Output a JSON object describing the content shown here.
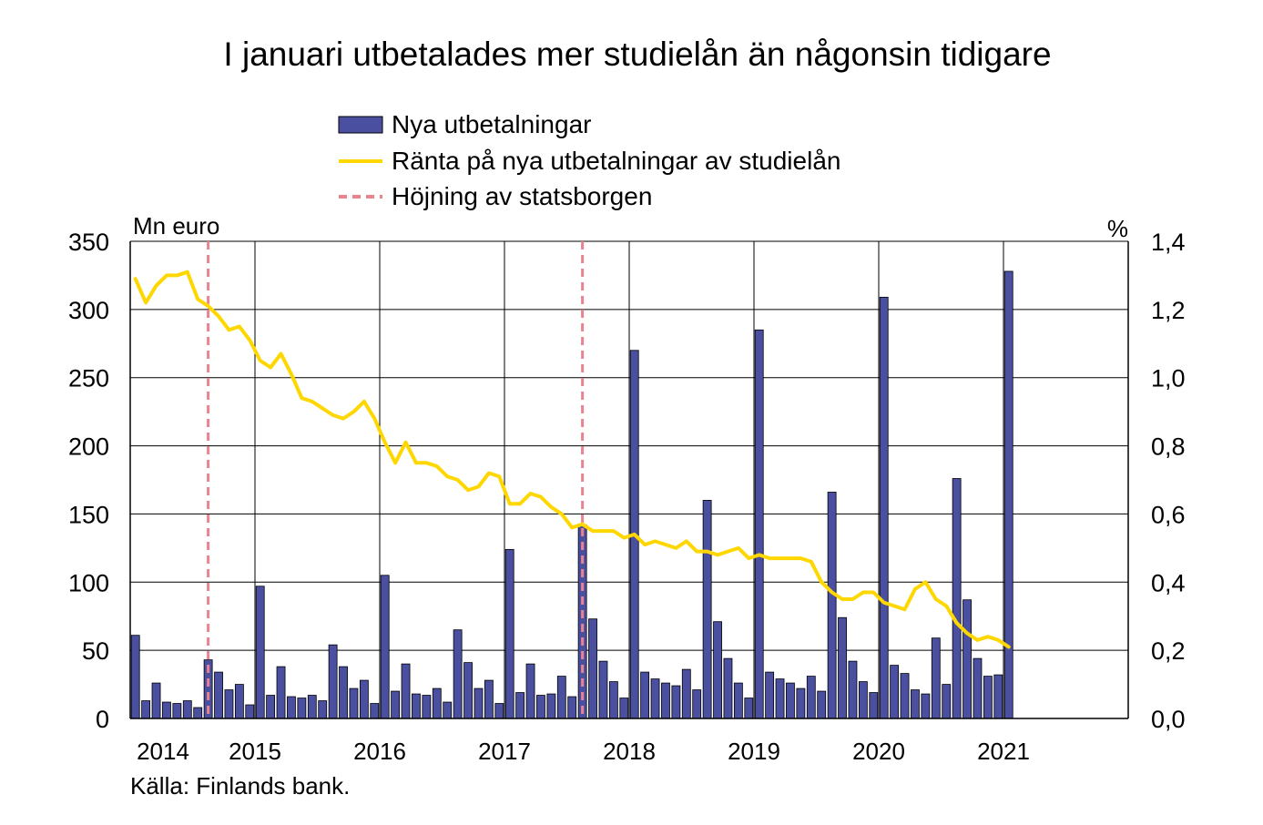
{
  "chart_data": {
    "type": "bar+line",
    "title": "I januari utbetalades mer studielån än någonsin tidigare",
    "left_axis_unit": "Mn euro",
    "right_axis_unit": "%",
    "left_ylim": [
      0,
      350
    ],
    "left_ticks": [
      "0",
      "50",
      "100",
      "150",
      "200",
      "250",
      "300",
      "350"
    ],
    "left_tick_values": [
      0,
      50,
      100,
      150,
      200,
      250,
      300,
      350
    ],
    "right_ylim": [
      0,
      1.4
    ],
    "right_ticks": [
      "0,0",
      "0,2",
      "0,4",
      "0,6",
      "0,8",
      "1,0",
      "1,2",
      "1,4"
    ],
    "right_tick_values": [
      0,
      0.2,
      0.4,
      0.6,
      0.8,
      1.0,
      1.2,
      1.4
    ],
    "x_labels": [
      "2014",
      "2015",
      "2016",
      "2017",
      "2018",
      "2019",
      "2020",
      "2021"
    ],
    "total_months": 96,
    "grid": true,
    "legend": [
      "Nya utbetalningar",
      "Ränta på nya utbetalningar av studielån",
      "Höjning av statsborgen"
    ],
    "source": "Källa: Finlands bank.",
    "colors": {
      "bars": "#4a4fa0",
      "bar_edge": "#000000",
      "line": "#ffd700",
      "marker": "#e8838f",
      "grid": "#000000"
    },
    "series": [
      {
        "name": "Nya utbetalningar",
        "axis": "left",
        "values": [
          61,
          13,
          26,
          12,
          11,
          13,
          8,
          43,
          34,
          21,
          25,
          10,
          97,
          17,
          38,
          16,
          15,
          17,
          13,
          54,
          38,
          22,
          28,
          11,
          105,
          20,
          40,
          18,
          17,
          22,
          12,
          65,
          41,
          22,
          28,
          11,
          124,
          19,
          40,
          17,
          18,
          31,
          16,
          142,
          73,
          42,
          27,
          15,
          270,
          34,
          29,
          26,
          24,
          36,
          21,
          160,
          71,
          44,
          26,
          15,
          285,
          34,
          29,
          26,
          22,
          31,
          20,
          166,
          74,
          42,
          27,
          19,
          309,
          39,
          33,
          21,
          18,
          59,
          25,
          176,
          87,
          44,
          31,
          32,
          328
        ]
      },
      {
        "name": "Ränta på nya utbetalningar av studielån",
        "axis": "right",
        "values": [
          1.29,
          1.22,
          1.27,
          1.3,
          1.3,
          1.31,
          1.23,
          1.21,
          1.18,
          1.14,
          1.15,
          1.11,
          1.05,
          1.03,
          1.07,
          1.01,
          0.94,
          0.93,
          0.91,
          0.89,
          0.88,
          0.9,
          0.93,
          0.88,
          0.81,
          0.75,
          0.81,
          0.75,
          0.75,
          0.74,
          0.71,
          0.7,
          0.67,
          0.68,
          0.72,
          0.71,
          0.63,
          0.63,
          0.66,
          0.65,
          0.62,
          0.6,
          0.56,
          0.57,
          0.55,
          0.55,
          0.55,
          0.53,
          0.54,
          0.51,
          0.52,
          0.51,
          0.5,
          0.52,
          0.49,
          0.49,
          0.48,
          0.49,
          0.5,
          0.47,
          0.48,
          0.47,
          0.47,
          0.47,
          0.47,
          0.46,
          0.4,
          0.37,
          0.35,
          0.35,
          0.37,
          0.37,
          0.34,
          0.33,
          0.32,
          0.38,
          0.4,
          0.35,
          0.33,
          0.28,
          0.25,
          0.23,
          0.24,
          0.23,
          0.21
        ]
      }
    ],
    "markers": [
      {
        "name": "Höjning av statsborgen",
        "month_index": 7.5
      },
      {
        "name": "Höjning av statsborgen",
        "month_index": 43.5
      }
    ]
  }
}
